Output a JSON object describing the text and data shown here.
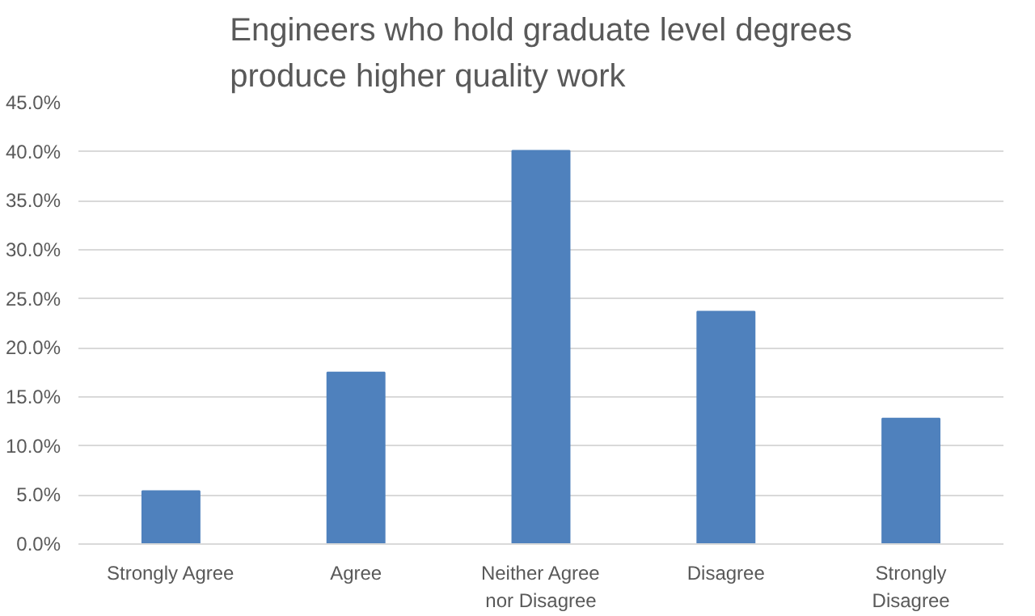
{
  "chart_data": {
    "type": "bar",
    "title": "Engineers who hold graduate level degrees\nproduce higher quality work",
    "categories": [
      "Strongly Agree",
      "Agree",
      "Neither Agree\nnor Disagree",
      "Disagree",
      "Strongly\nDisagree"
    ],
    "values": [
      5.4,
      17.5,
      40.1,
      23.7,
      12.8
    ],
    "color": "#4f81bd",
    "ylim": [
      0,
      45
    ],
    "yticks": [
      {
        "value": 0,
        "label": "0.0%"
      },
      {
        "value": 5,
        "label": "5.0%"
      },
      {
        "value": 10,
        "label": "10.0%"
      },
      {
        "value": 15,
        "label": "15.0%"
      },
      {
        "value": 20,
        "label": "20.0%"
      },
      {
        "value": 25,
        "label": "25.0%"
      },
      {
        "value": 30,
        "label": "30.0%"
      },
      {
        "value": 35,
        "label": "35.0%"
      },
      {
        "value": 40,
        "label": "40.0%"
      },
      {
        "value": 45,
        "label": "45.0%"
      }
    ],
    "grid": "y"
  }
}
